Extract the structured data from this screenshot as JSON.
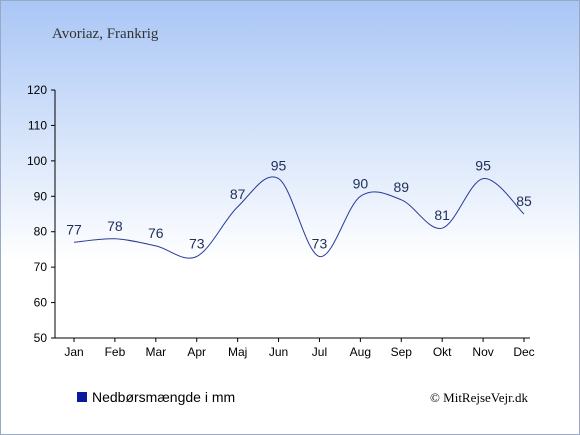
{
  "chart_data": {
    "type": "line",
    "title": "Avoriaz, Frankrig",
    "categories": [
      "Jan",
      "Feb",
      "Mar",
      "Apr",
      "Maj",
      "Jun",
      "Jul",
      "Aug",
      "Sep",
      "Okt",
      "Nov",
      "Dec"
    ],
    "series": [
      {
        "name": "Nedbørsmængde i mm",
        "values": [
          77,
          78,
          76,
          73,
          87,
          95,
          73,
          90,
          89,
          81,
          95,
          85
        ]
      }
    ],
    "yticks": [
      50,
      60,
      70,
      80,
      90,
      100,
      110,
      120
    ],
    "ylim": [
      50,
      120
    ],
    "grid": false,
    "legend_position": "bottom-left",
    "colors": {
      "line": "#2a3c9a",
      "legend_marker": "#0a1a9e",
      "background_top": "#a9c6f5",
      "background_bottom": "#ffffff"
    }
  },
  "copyright": "© MitRejseVejr.dk"
}
